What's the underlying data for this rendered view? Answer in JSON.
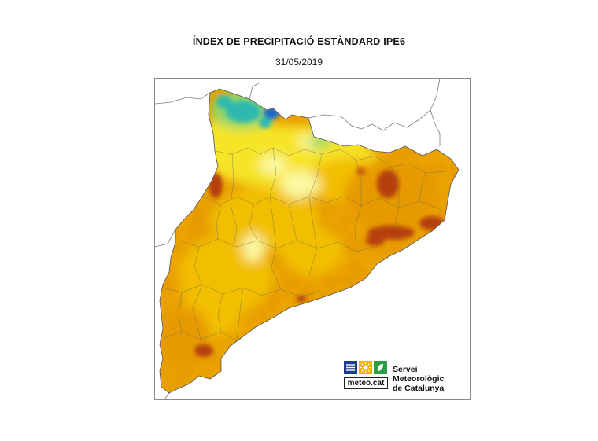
{
  "header": {
    "title": "ÍNDEX DE PRECIPITACIÓ ESTÀNDARD IPE6",
    "date": "31/05/2019"
  },
  "map": {
    "colors": {
      "extreme_dry": "#b53f0f",
      "very_dry": "#e69a00",
      "dry": "#f2bf00",
      "normal": "#f6e427",
      "slightly_wet": "#fbf8a0",
      "wet": "#8ed66a",
      "very_wet": "#2fb9b0",
      "extreme_wet": "#1b66c9"
    }
  },
  "logo": {
    "wordmark": "meteo.cat",
    "service_line1": "Servei Meteorològic",
    "service_line2": "de Catalunya",
    "tile_colors": [
      "#1f3c8f",
      "#f3b400",
      "#2e9e46"
    ]
  }
}
